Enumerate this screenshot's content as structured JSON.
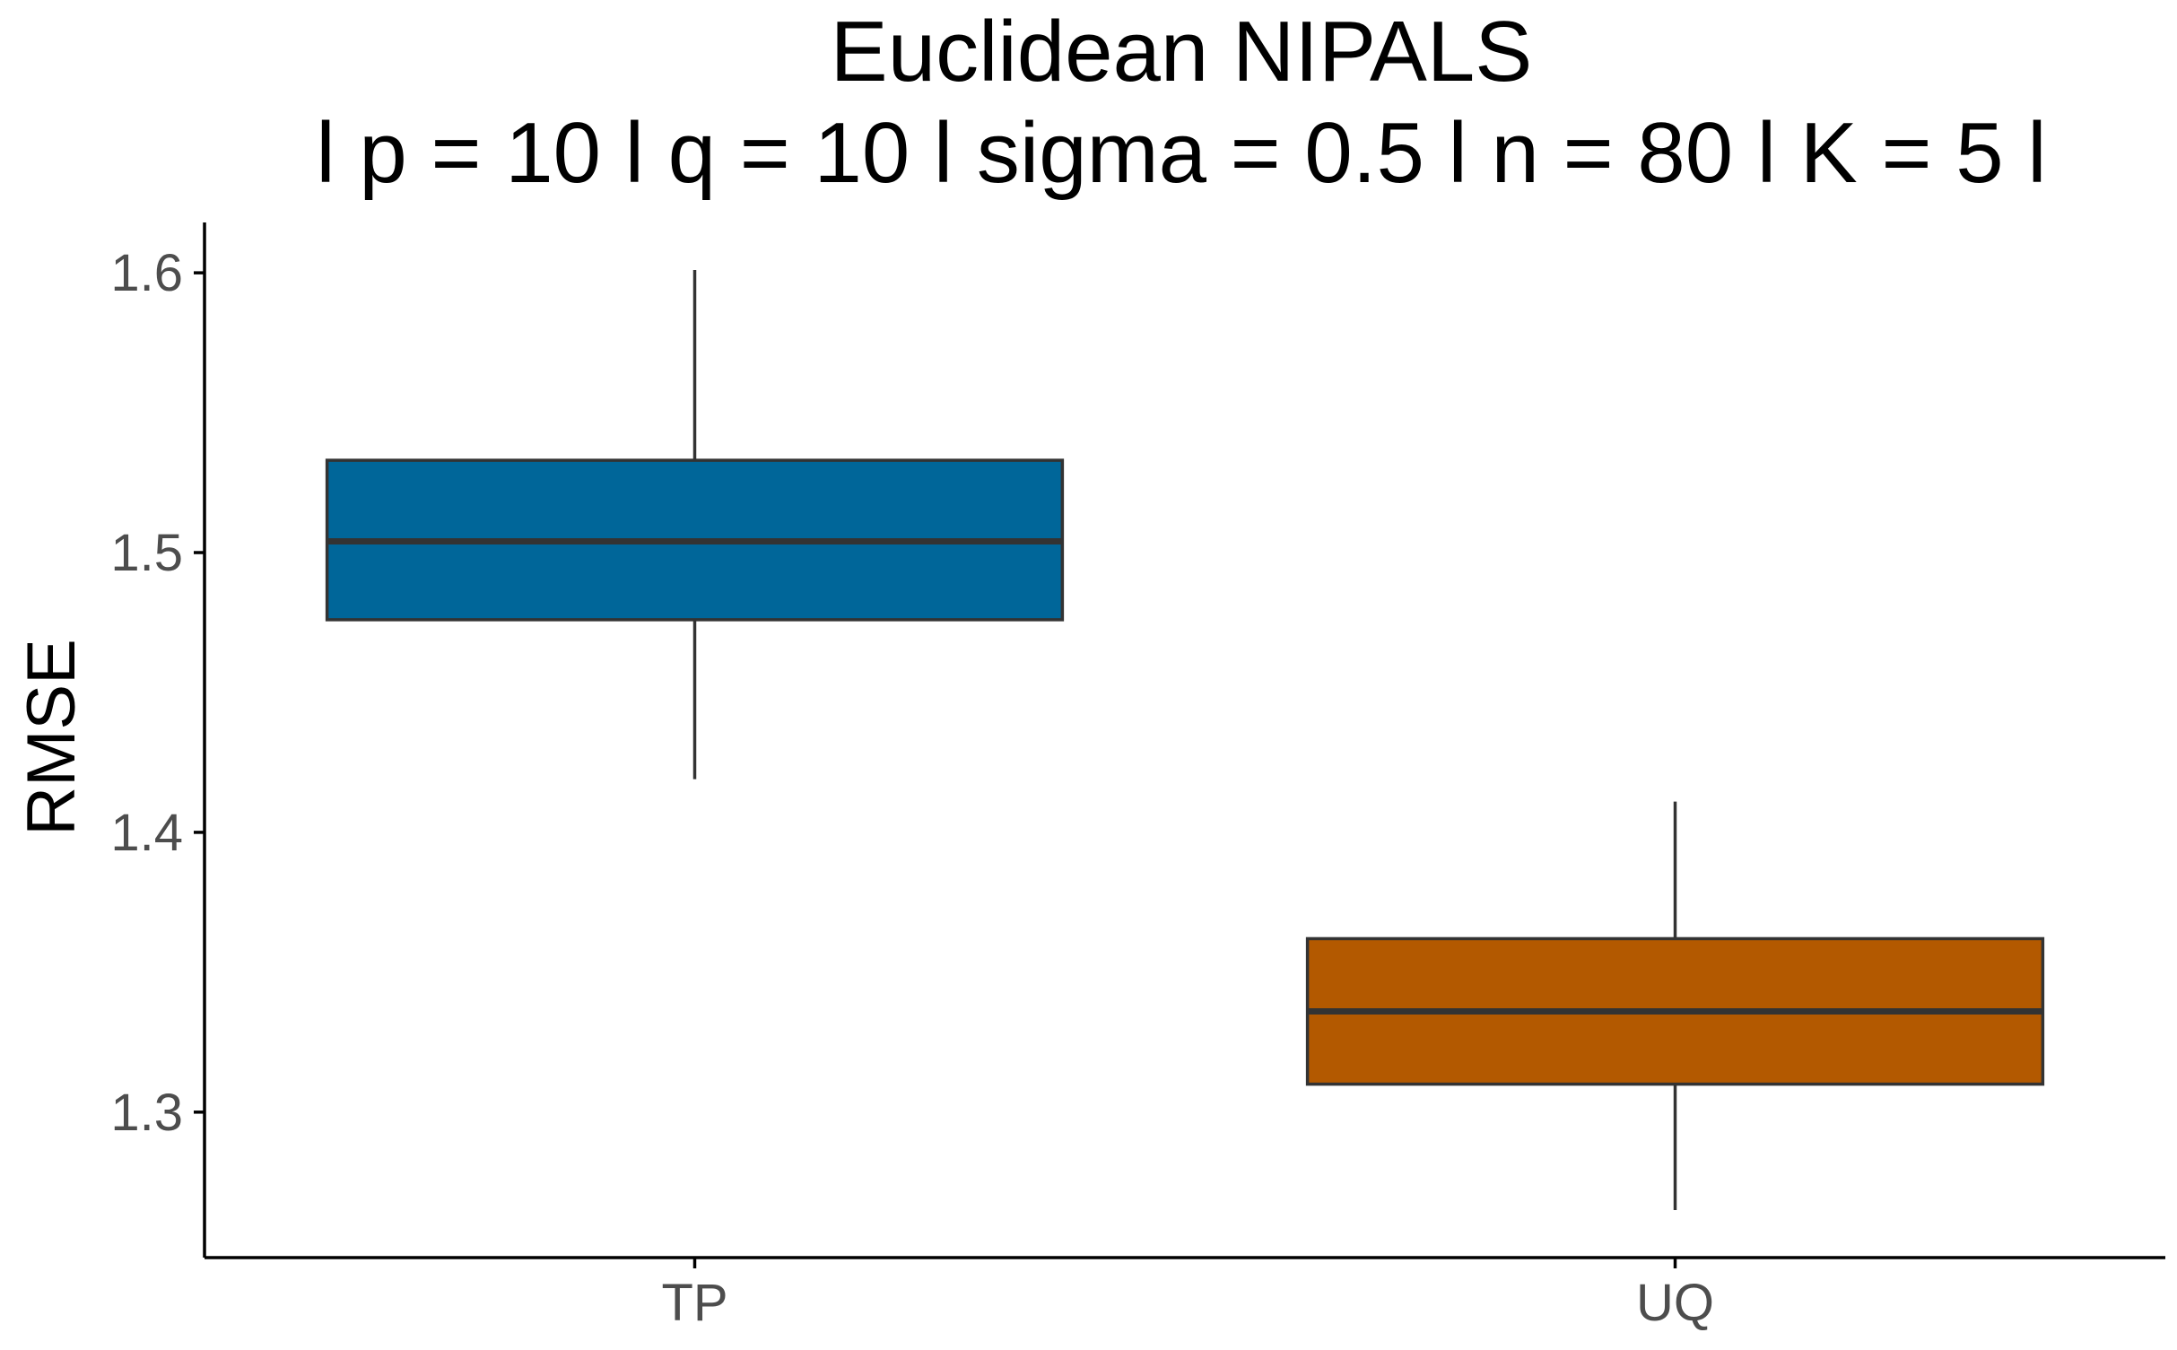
{
  "chart_data": {
    "type": "box",
    "title": "Euclidean NIPALS",
    "subtitle": "l p = 10 l q = 10 l sigma = 0.5 l n = 80 l K = 5 l",
    "xlabel": "",
    "ylabel": "RMSE",
    "ylim": [
      1.248,
      1.618
    ],
    "yticks": [
      1.3,
      1.4,
      1.5,
      1.6
    ],
    "ytick_labels": [
      "1.3",
      "1.4",
      "1.5",
      "1.6"
    ],
    "categories": [
      "TP",
      "UQ"
    ],
    "boxes": [
      {
        "category": "TP",
        "whisker_low": 1.419,
        "q1": 1.476,
        "median": 1.504,
        "q3": 1.533,
        "whisker_high": 1.601,
        "color": "#006699"
      },
      {
        "category": "UQ",
        "whisker_low": 1.265,
        "q1": 1.31,
        "median": 1.336,
        "q3": 1.362,
        "whisker_high": 1.411,
        "color": "#B35900"
      }
    ],
    "grid": false,
    "legend": "none",
    "colors": {
      "box_outline": "#333333",
      "axis_line": "#000000",
      "tick_label": "#4d4d4d"
    }
  }
}
